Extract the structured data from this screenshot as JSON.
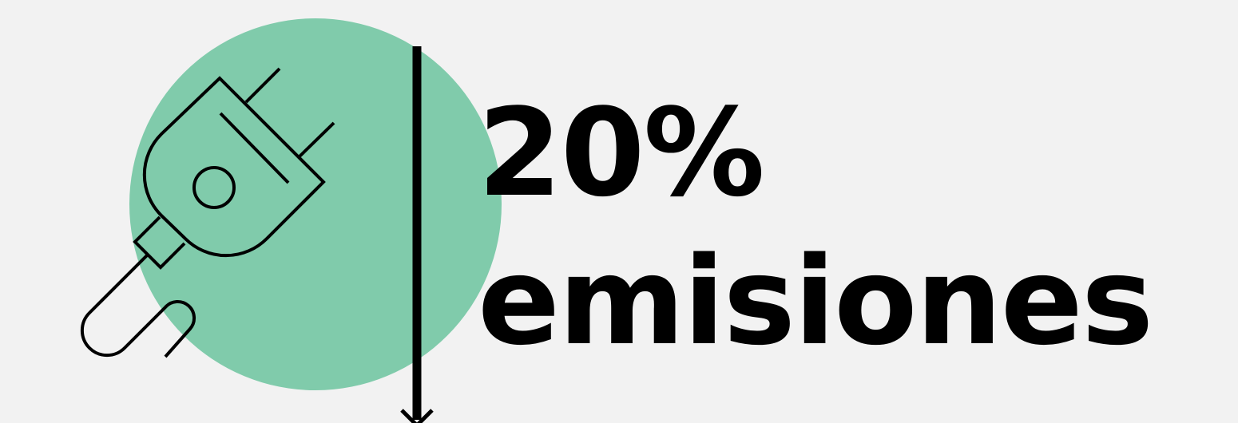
{
  "headline": {
    "value": "20%",
    "label": "emisiones"
  },
  "icons": {
    "plug": "electric-plug-icon",
    "arrow": "arrow-down-icon"
  },
  "colors": {
    "background": "#f2f2f2",
    "circle": "#80cbab",
    "stroke": "#000000",
    "text": "#000000"
  }
}
